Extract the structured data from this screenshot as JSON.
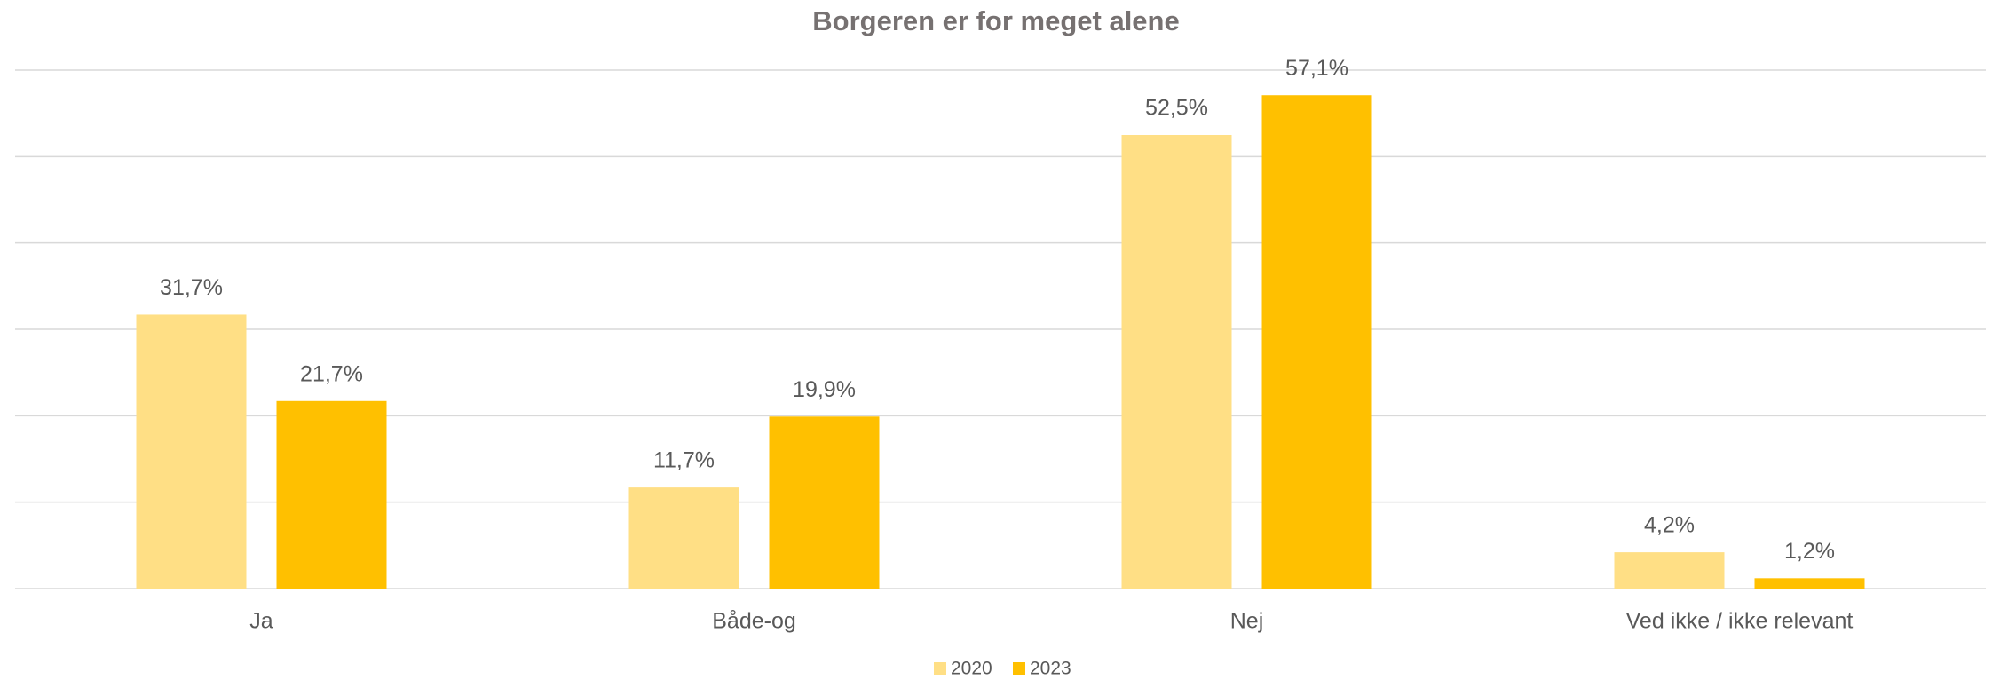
{
  "chart_data": {
    "type": "bar",
    "title": "Borgeren er for meget alene",
    "categories": [
      "Ja",
      "Både-og",
      "Nej",
      "Ved ikke / ikke relevant"
    ],
    "series": [
      {
        "name": "2020",
        "color": "#ffdf85",
        "values": [
          31.7,
          11.7,
          52.5,
          4.2
        ],
        "value_labels": [
          "31,7%",
          "11,7%",
          "52,5%",
          "4,2%"
        ]
      },
      {
        "name": "2023",
        "color": "#ffc000",
        "values": [
          21.7,
          19.9,
          57.1,
          1.2
        ],
        "value_labels": [
          "21,7%",
          "19,9%",
          "57,1%",
          "1,2%"
        ]
      }
    ],
    "ylim": [
      0,
      60
    ],
    "yticks": [
      0,
      10,
      20,
      30,
      40,
      50,
      60
    ],
    "grid": true,
    "legend": "bottom"
  }
}
